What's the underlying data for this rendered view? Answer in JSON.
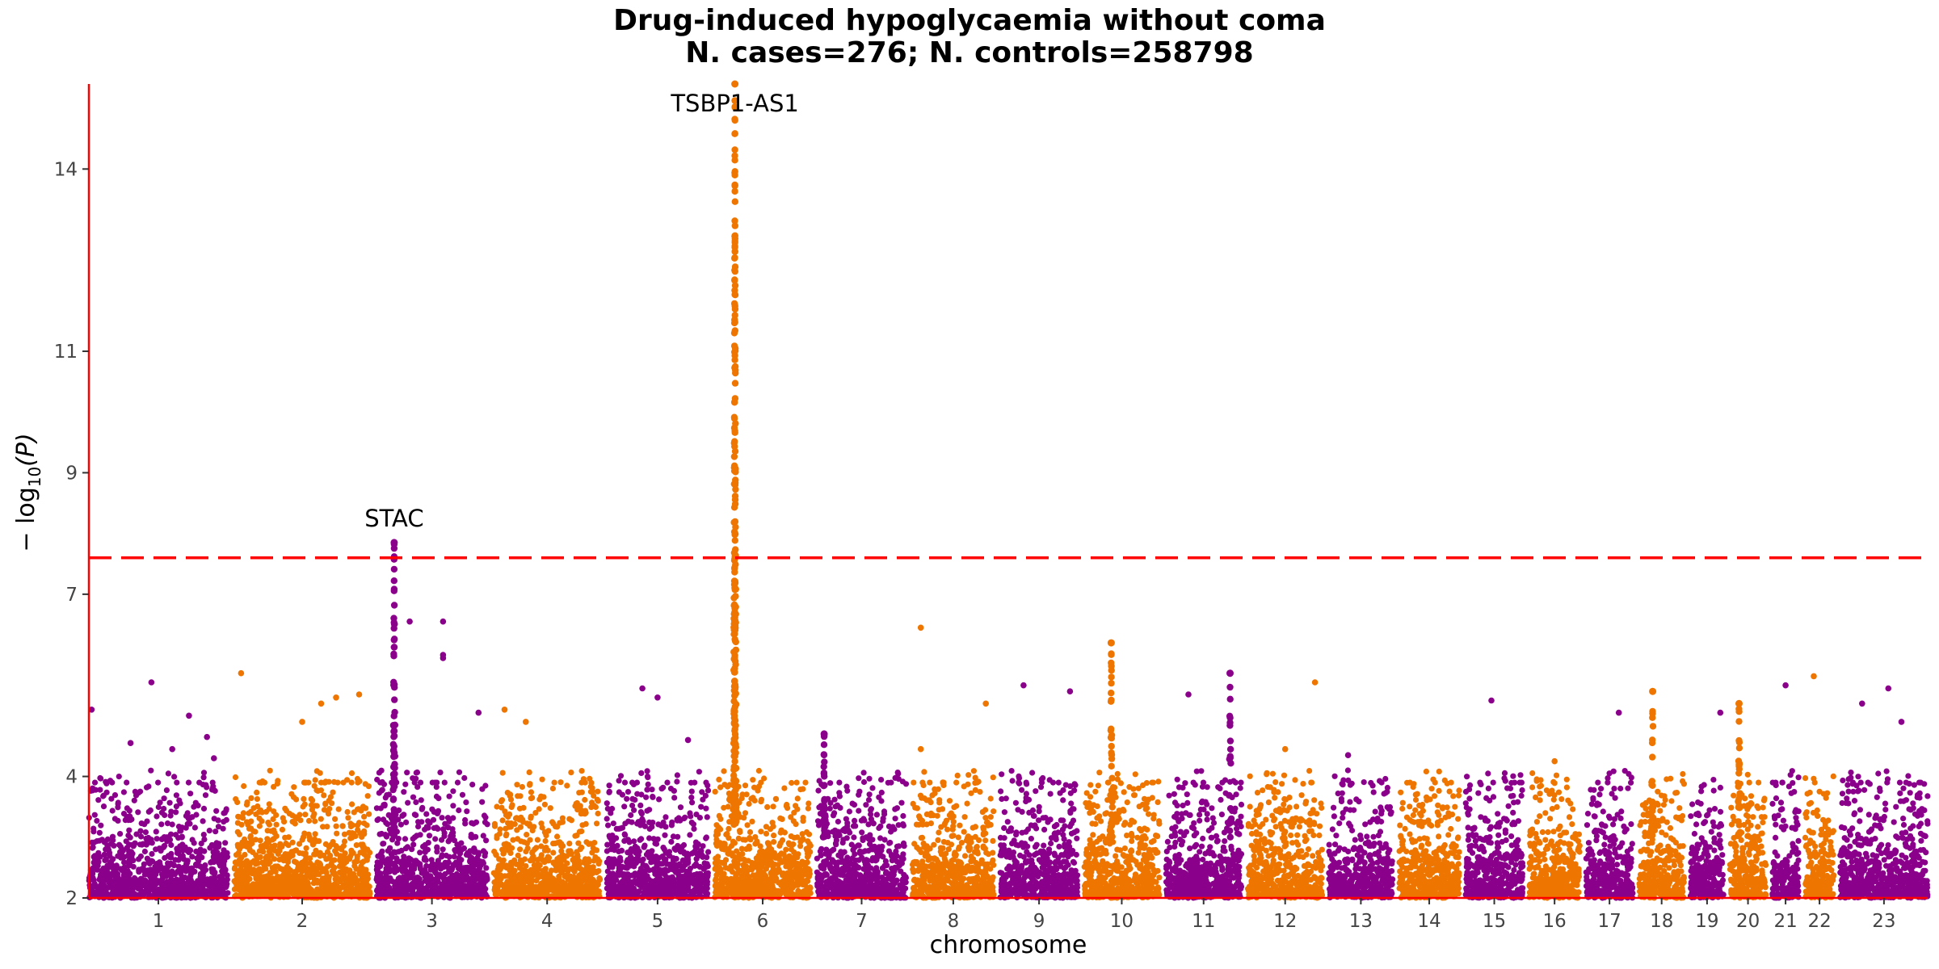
{
  "chart_data": {
    "type": "scatter",
    "subtype": "manhattan",
    "title": "Drug-induced hypoglycaemia without coma",
    "subtitle": "N. cases=276; N. controls=258798",
    "xlabel": "chromosome",
    "ylabel_main": "− log",
    "ylabel_sub": "10",
    "ylabel_arg": "(P)",
    "ylim": [
      2,
      15.4
    ],
    "yticks": [
      2,
      4,
      7,
      9,
      11,
      14
    ],
    "significance_line": 7.6,
    "colors": {
      "odd": "#8B008B",
      "even": "#EE7600",
      "axis": "#FF0000",
      "threshold": "#FF0000"
    },
    "chromosomes": [
      {
        "label": "1",
        "length": 248
      },
      {
        "label": "2",
        "length": 242
      },
      {
        "label": "3",
        "length": 198
      },
      {
        "label": "4",
        "length": 190
      },
      {
        "label": "5",
        "length": 181
      },
      {
        "label": "6",
        "length": 171
      },
      {
        "label": "7",
        "length": 159
      },
      {
        "label": "8",
        "length": 145
      },
      {
        "label": "9",
        "length": 138
      },
      {
        "label": "10",
        "length": 134
      },
      {
        "label": "11",
        "length": 135
      },
      {
        "label": "12",
        "length": 133
      },
      {
        "label": "13",
        "length": 114
      },
      {
        "label": "14",
        "length": 107
      },
      {
        "label": "15",
        "length": 102
      },
      {
        "label": "16",
        "length": 90
      },
      {
        "label": "17",
        "length": 83
      },
      {
        "label": "18",
        "length": 80
      },
      {
        "label": "19",
        "length": 59
      },
      {
        "label": "20",
        "length": 64
      },
      {
        "label": "21",
        "length": 47
      },
      {
        "label": "22",
        "length": 51
      },
      {
        "label": "23",
        "length": 156
      }
    ],
    "peaks": [
      {
        "chrom": "6",
        "pos": 0.21,
        "max": 15.4,
        "min": 3.2,
        "count": 260
      },
      {
        "chrom": "3",
        "pos": 0.16,
        "max": 7.85,
        "min": 3.0,
        "count": 70
      },
      {
        "chrom": "10",
        "pos": 0.36,
        "max": 6.2,
        "min": 3.0,
        "count": 40
      },
      {
        "chrom": "7",
        "pos": 0.08,
        "max": 4.7,
        "min": 3.0,
        "count": 40
      },
      {
        "chrom": "20",
        "pos": 0.25,
        "max": 5.2,
        "min": 3.0,
        "count": 30
      },
      {
        "chrom": "18",
        "pos": 0.3,
        "max": 5.4,
        "min": 3.0,
        "count": 20
      },
      {
        "chrom": "11",
        "pos": 0.85,
        "max": 5.7,
        "min": 3.0,
        "count": 20
      }
    ],
    "outliers": [
      {
        "chrom": "1",
        "pos": 0.02,
        "y": 5.1
      },
      {
        "chrom": "1",
        "pos": 0.45,
        "y": 5.55
      },
      {
        "chrom": "1",
        "pos": 0.6,
        "y": 4.45
      },
      {
        "chrom": "1",
        "pos": 0.72,
        "y": 5.0
      },
      {
        "chrom": "1",
        "pos": 0.85,
        "y": 4.65
      },
      {
        "chrom": "1",
        "pos": 0.3,
        "y": 4.55
      },
      {
        "chrom": "1",
        "pos": 0.9,
        "y": 4.3
      },
      {
        "chrom": "2",
        "pos": 0.75,
        "y": 5.3
      },
      {
        "chrom": "2",
        "pos": 0.5,
        "y": 4.9
      },
      {
        "chrom": "2",
        "pos": 0.92,
        "y": 5.35
      },
      {
        "chrom": "2",
        "pos": 0.64,
        "y": 5.2
      },
      {
        "chrom": "2",
        "pos": 0.05,
        "y": 5.7
      },
      {
        "chrom": "3",
        "pos": 0.3,
        "y": 6.55
      },
      {
        "chrom": "3",
        "pos": 0.6,
        "y": 6.55
      },
      {
        "chrom": "3",
        "pos": 0.6,
        "y": 6.0
      },
      {
        "chrom": "3",
        "pos": 0.6,
        "y": 5.95
      },
      {
        "chrom": "3",
        "pos": 0.92,
        "y": 5.05
      },
      {
        "chrom": "4",
        "pos": 0.1,
        "y": 5.1
      },
      {
        "chrom": "4",
        "pos": 0.3,
        "y": 4.9
      },
      {
        "chrom": "5",
        "pos": 0.35,
        "y": 5.45
      },
      {
        "chrom": "5",
        "pos": 0.5,
        "y": 5.3
      },
      {
        "chrom": "5",
        "pos": 0.8,
        "y": 4.6
      },
      {
        "chrom": "8",
        "pos": 0.1,
        "y": 6.45
      },
      {
        "chrom": "8",
        "pos": 0.9,
        "y": 5.2
      },
      {
        "chrom": "8",
        "pos": 0.1,
        "y": 4.45
      },
      {
        "chrom": "9",
        "pos": 0.3,
        "y": 5.5
      },
      {
        "chrom": "9",
        "pos": 0.9,
        "y": 5.4
      },
      {
        "chrom": "11",
        "pos": 0.3,
        "y": 5.35
      },
      {
        "chrom": "12",
        "pos": 0.9,
        "y": 5.55
      },
      {
        "chrom": "12",
        "pos": 0.5,
        "y": 4.45
      },
      {
        "chrom": "13",
        "pos": 0.3,
        "y": 4.35
      },
      {
        "chrom": "15",
        "pos": 0.45,
        "y": 5.25
      },
      {
        "chrom": "16",
        "pos": 0.5,
        "y": 4.25
      },
      {
        "chrom": "17",
        "pos": 0.7,
        "y": 5.05
      },
      {
        "chrom": "19",
        "pos": 0.9,
        "y": 5.05
      },
      {
        "chrom": "21",
        "pos": 0.5,
        "y": 5.5
      },
      {
        "chrom": "22",
        "pos": 0.3,
        "y": 5.65
      },
      {
        "chrom": "23",
        "pos": 0.55,
        "y": 5.45
      },
      {
        "chrom": "23",
        "pos": 0.25,
        "y": 5.2
      },
      {
        "chrom": "23",
        "pos": 0.7,
        "y": 4.9
      }
    ],
    "annotations": [
      {
        "label": "TSBP1-AS1",
        "chrom": "6",
        "pos": 0.21,
        "y": 15.4
      },
      {
        "label": "STAC",
        "chrom": "3",
        "pos": 0.16,
        "y": 7.85
      }
    ]
  }
}
